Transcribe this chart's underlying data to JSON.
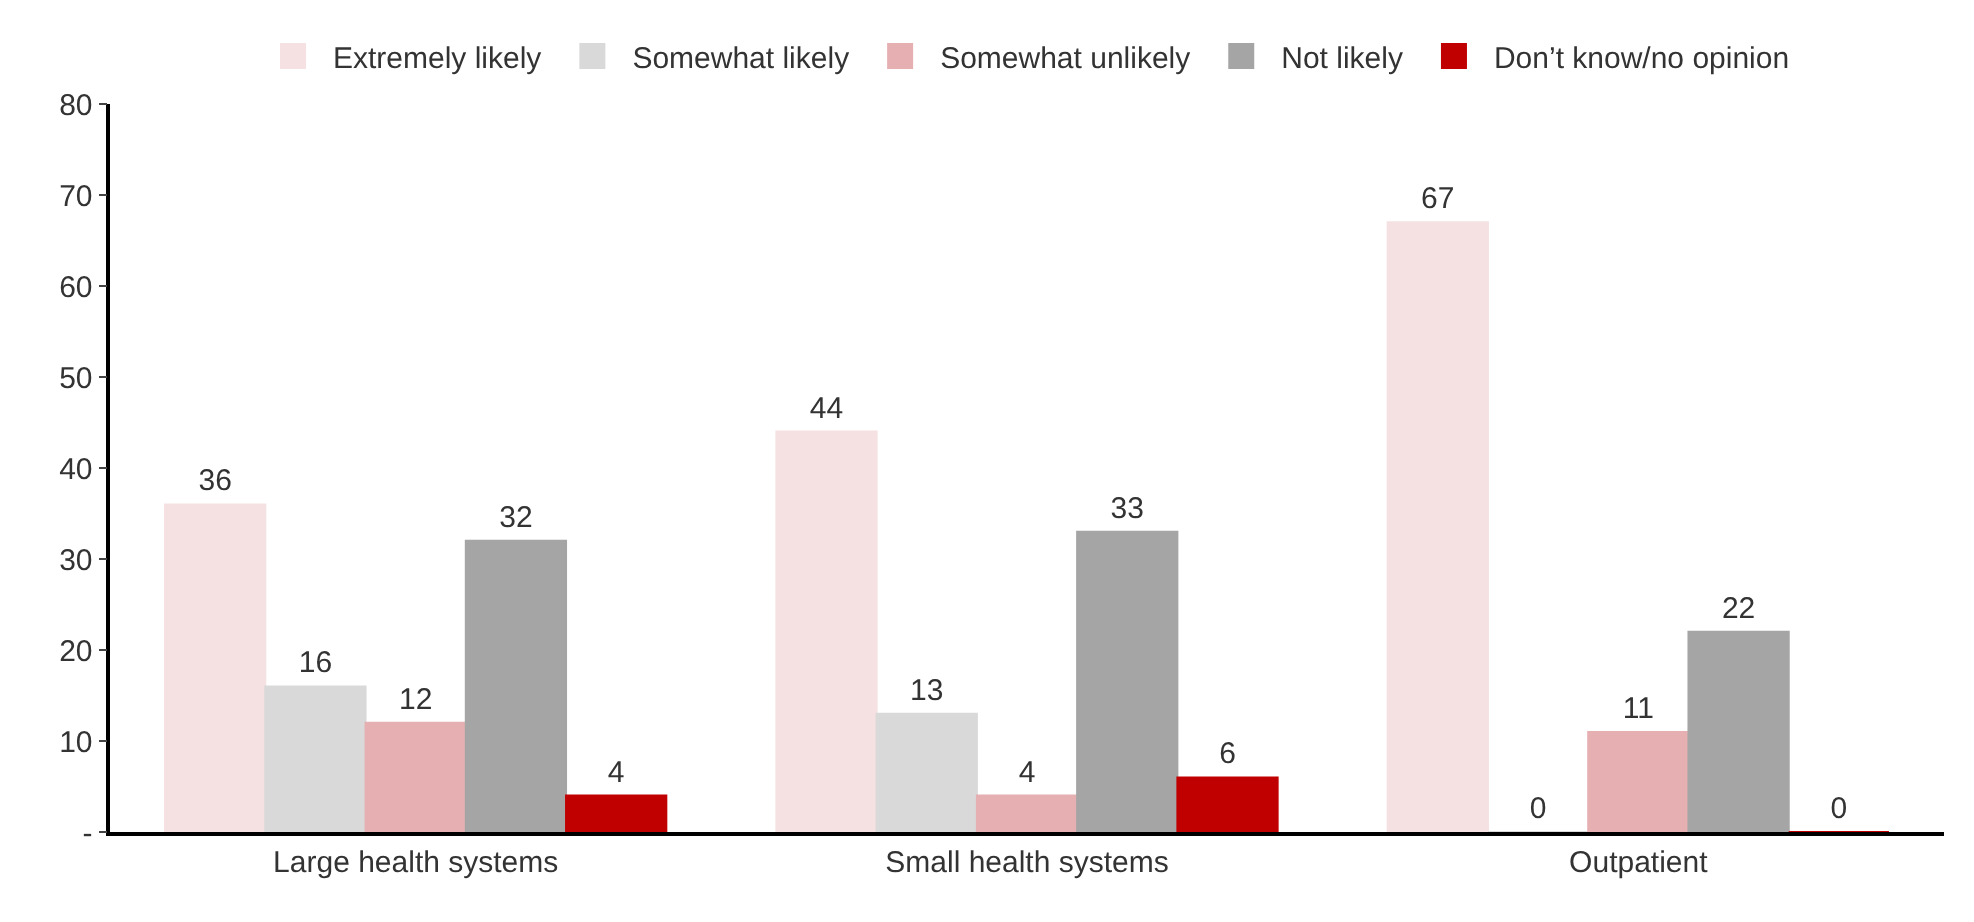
{
  "chart_data": {
    "type": "bar",
    "categories": [
      "Large health systems",
      "Small health systems",
      "Outpatient"
    ],
    "series": [
      {
        "name": "Extremely likely",
        "color": "#f5e1e2",
        "values": [
          36,
          44,
          67
        ]
      },
      {
        "name": "Somewhat likely",
        "color": "#d9d9d9",
        "values": [
          16,
          13,
          0
        ]
      },
      {
        "name": "Somewhat unlikely",
        "color": "#e6b0b2",
        "values": [
          12,
          4,
          11
        ]
      },
      {
        "name": "Not likely",
        "color": "#a5a5a5",
        "values": [
          32,
          33,
          22
        ]
      },
      {
        "name": "Don’t know/no opinion",
        "color": "#c00000",
        "values": [
          4,
          6,
          0
        ]
      }
    ],
    "ylim": [
      0,
      80
    ],
    "yticks": [
      {
        "value": 0,
        "label": "-"
      },
      10,
      20,
      30,
      40,
      50,
      60,
      70,
      80
    ],
    "data_labels": true,
    "legend": "top"
  }
}
